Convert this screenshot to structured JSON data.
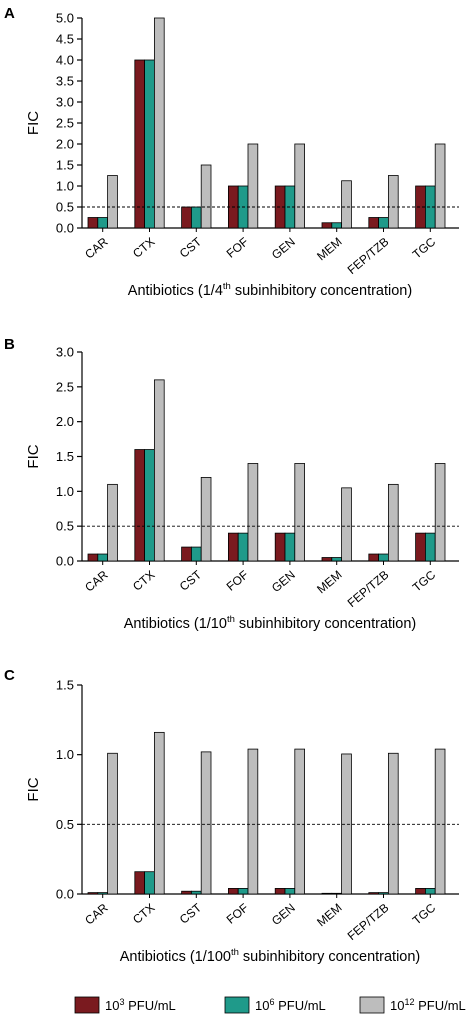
{
  "colors": {
    "s1": "#7a1a1f",
    "s2": "#1f9a8a",
    "s3": "#bdbdbd",
    "stroke": "#000000"
  },
  "legend": [
    {
      "base": "10",
      "exp": "3",
      "unit": " PFU/mL"
    },
    {
      "base": "10",
      "exp": "6",
      "unit": " PFU/mL"
    },
    {
      "base": "10",
      "exp": "12",
      "unit": " PFU/mL"
    }
  ],
  "chart_data": [
    {
      "type": "bar",
      "panel": "A",
      "ylabel": "FIC",
      "xlabel": {
        "pre": "Antibiotics (1/4",
        "sup": "th",
        "post": " subinhibitory concentration)"
      },
      "ylim": [
        0,
        5
      ],
      "yticks": [
        "0.0",
        "0.5",
        "1.0",
        "1.5",
        "2.0",
        "2.5",
        "3.0",
        "3.5",
        "4.0",
        "4.5",
        "5.0"
      ],
      "ytick_values": [
        0,
        0.5,
        1,
        1.5,
        2,
        2.5,
        3,
        3.5,
        4,
        4.5,
        5
      ],
      "threshold": 0.5,
      "categories": [
        "CAR",
        "CTX",
        "CST",
        "FOF",
        "GEN",
        "MEM",
        "FEP/TZB",
        "TGC"
      ],
      "series": [
        {
          "values": [
            0.25,
            4.0,
            0.5,
            1.0,
            1.0,
            0.125,
            0.25,
            1.0
          ]
        },
        {
          "values": [
            0.25,
            4.0,
            0.5,
            1.0,
            1.0,
            0.125,
            0.25,
            1.0
          ]
        },
        {
          "values": [
            1.25,
            5.0,
            1.5,
            2.0,
            2.0,
            1.125,
            1.25,
            2.0
          ]
        }
      ]
    },
    {
      "type": "bar",
      "panel": "B",
      "ylabel": "FIC",
      "xlabel": {
        "pre": "Antibiotics (1/10",
        "sup": "th",
        "post": " subinhibitory concentration)"
      },
      "ylim": [
        0,
        3
      ],
      "yticks": [
        "0.0",
        "0.5",
        "1.0",
        "1.5",
        "2.0",
        "2.5",
        "3.0"
      ],
      "ytick_values": [
        0,
        0.5,
        1,
        1.5,
        2,
        2.5,
        3
      ],
      "threshold": 0.5,
      "categories": [
        "CAR",
        "CTX",
        "CST",
        "FOF",
        "GEN",
        "MEM",
        "FEP/TZB",
        "TGC"
      ],
      "series": [
        {
          "values": [
            0.1,
            1.6,
            0.2,
            0.4,
            0.4,
            0.05,
            0.1,
            0.4
          ]
        },
        {
          "values": [
            0.1,
            1.6,
            0.2,
            0.4,
            0.4,
            0.05,
            0.1,
            0.4
          ]
        },
        {
          "values": [
            1.1,
            2.6,
            1.2,
            1.4,
            1.4,
            1.05,
            1.1,
            1.4
          ]
        }
      ]
    },
    {
      "type": "bar",
      "panel": "C",
      "ylabel": "FIC",
      "xlabel": {
        "pre": "Antibiotics (1/100",
        "sup": "th",
        "post": " subinhibitory concentration)"
      },
      "ylim": [
        0,
        1.5
      ],
      "yticks": [
        "0.0",
        "0.5",
        "1.0",
        "1.5"
      ],
      "ytick_values": [
        0,
        0.5,
        1,
        1.5
      ],
      "threshold": 0.5,
      "categories": [
        "CAR",
        "CTX",
        "CST",
        "FOF",
        "GEN",
        "MEM",
        "FEP/TZB",
        "TGC"
      ],
      "series": [
        {
          "values": [
            0.01,
            0.16,
            0.02,
            0.04,
            0.04,
            0.005,
            0.01,
            0.04
          ]
        },
        {
          "values": [
            0.01,
            0.16,
            0.02,
            0.04,
            0.04,
            0.005,
            0.01,
            0.04
          ]
        },
        {
          "values": [
            1.01,
            1.16,
            1.02,
            1.04,
            1.04,
            1.005,
            1.01,
            1.04
          ]
        }
      ]
    }
  ]
}
